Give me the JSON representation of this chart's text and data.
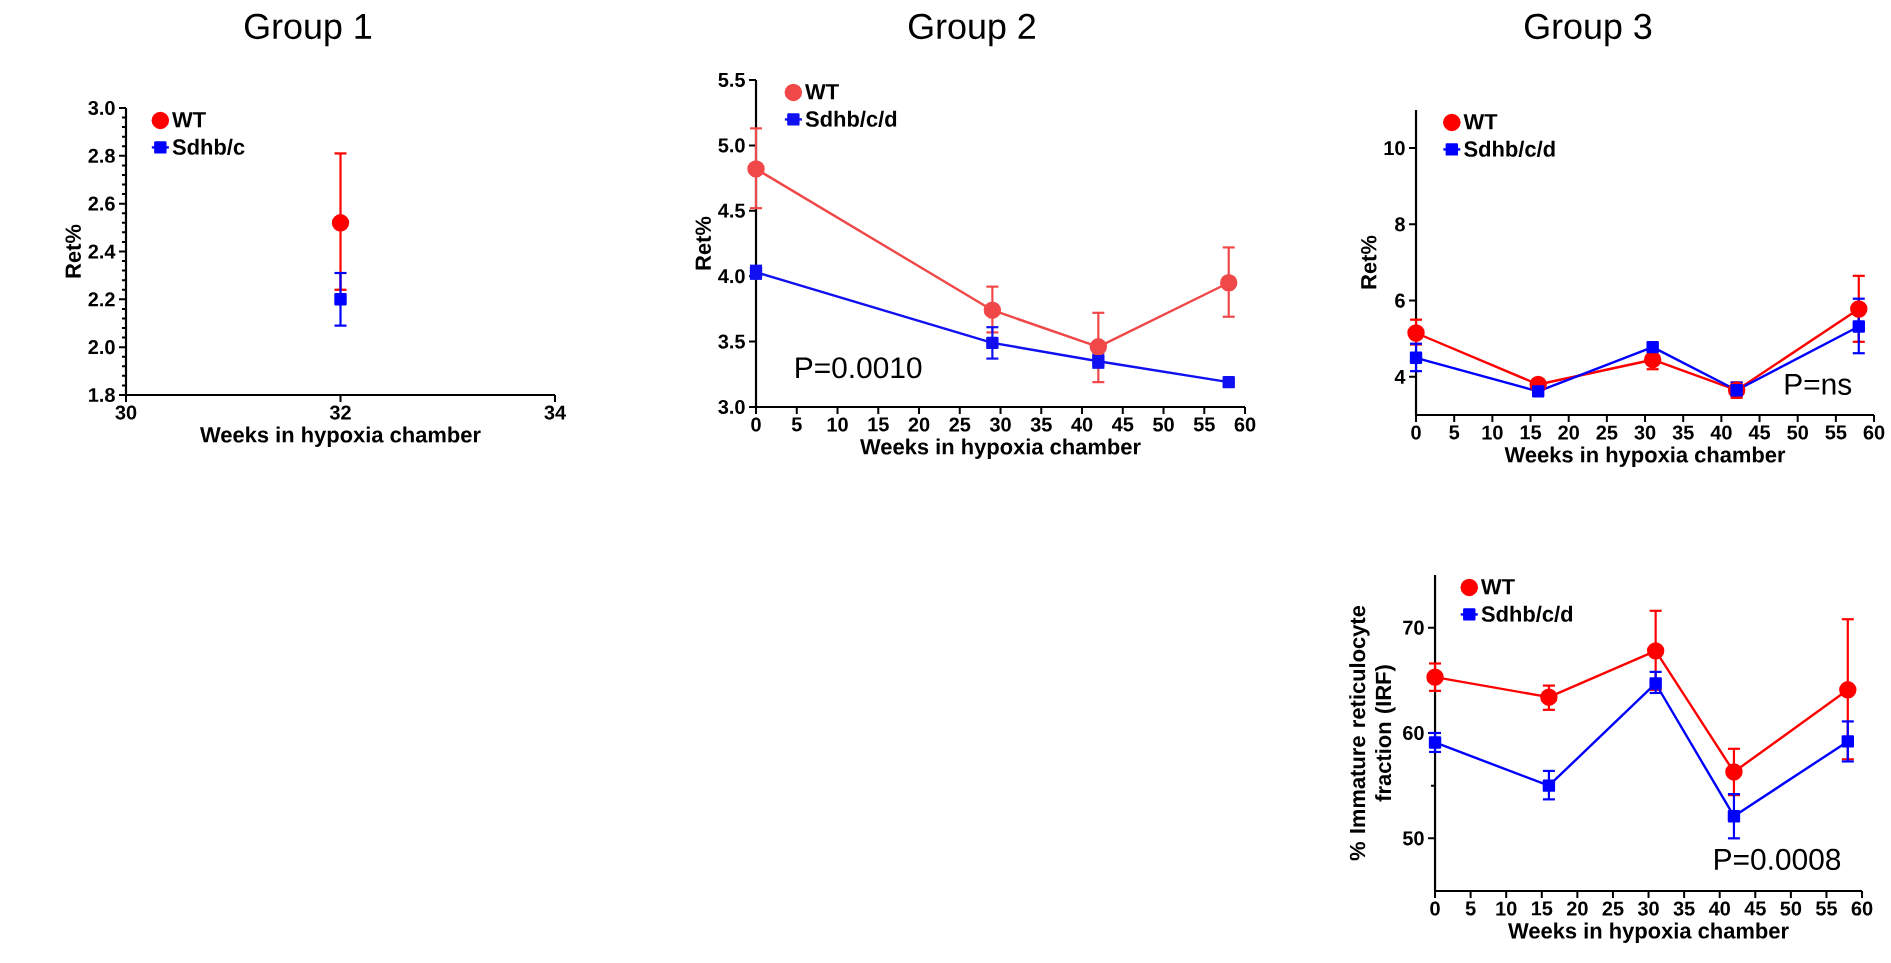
{
  "chart_data": [
    {
      "type": "line",
      "title": "Group 1",
      "xlabel": "Weeks in hypoxia chamber",
      "ylabel": "Ret%",
      "xlim": [
        30,
        34
      ],
      "xticks": [
        30,
        32,
        34
      ],
      "ylim": [
        1.8,
        3.0
      ],
      "yticks": [
        1.8,
        {
          "value": 2,
          "label": "2.0"
        },
        2.2,
        2.4,
        2.6,
        2.8,
        {
          "value": 3,
          "label": "3.0"
        }
      ],
      "legend": "top left",
      "line_style": "solid",
      "series": [
        {
          "name": "WT",
          "color": "#ff0000",
          "marker": "circle",
          "x": [
            32
          ],
          "values": [
            2.52
          ],
          "errors": [
            [
              2.24,
              2.81
            ]
          ]
        },
        {
          "name": "Sdhb/c",
          "color": "#0000ff",
          "marker": "square",
          "x": [
            32
          ],
          "values": [
            2.2
          ],
          "errors": [
            [
              2.09,
              2.31
            ]
          ]
        }
      ]
    },
    {
      "type": "line",
      "title": "Group 2",
      "xlabel": "Weeks in hypoxia chamber",
      "ylabel": "Ret%",
      "xlim": [
        0,
        60
      ],
      "xticks": [
        0,
        5,
        10,
        15,
        20,
        25,
        30,
        35,
        40,
        45,
        50,
        55,
        60
      ],
      "ylim": [
        3.0,
        5.5
      ],
      "yticks": [
        {
          "value": 3,
          "label": "3.0"
        },
        3.5,
        {
          "value": 4,
          "label": "4.0"
        },
        4.5,
        {
          "value": 5,
          "label": "5.0"
        },
        5.5
      ],
      "legend": "top left",
      "line_style": "solid",
      "annotations": [
        "P=0.0010"
      ],
      "series": [
        {
          "name": "WT",
          "color": "#f04848",
          "marker": "circle",
          "x": [
            0,
            29,
            42,
            58
          ],
          "values": [
            4.82,
            3.74,
            3.46,
            3.95
          ],
          "errors": [
            [
              4.52,
              5.13
            ],
            [
              3.57,
              3.92
            ],
            [
              3.19,
              3.72
            ],
            [
              3.69,
              4.22
            ]
          ]
        },
        {
          "name": "Sdhb/c/d",
          "color": "#1010f0",
          "marker": "square",
          "x": [
            0,
            29,
            42,
            58
          ],
          "values": [
            4.03,
            3.49,
            3.35,
            3.19
          ],
          "errors": [
            [
              3.98,
              4.08
            ],
            [
              3.37,
              3.61
            ],
            [
              3.3,
              3.4
            ],
            null
          ]
        }
      ]
    },
    {
      "type": "line",
      "title": "Group 3",
      "xlabel": "Weeks in hypoxia chamber",
      "ylabel": "Ret%",
      "xlim": [
        0,
        60
      ],
      "xticks": [
        0,
        5,
        10,
        15,
        20,
        25,
        30,
        35,
        40,
        45,
        50,
        55,
        60
      ],
      "ylim": [
        3,
        11
      ],
      "yticks": [
        4,
        6,
        8,
        10
      ],
      "legend": "top left",
      "line_style": "solid",
      "annotations": [
        "P=ns"
      ],
      "series": [
        {
          "name": "WT",
          "color": "#ff0000",
          "marker": "circle",
          "x": [
            0,
            16,
            31,
            42,
            58
          ],
          "values": [
            5.15,
            3.8,
            4.45,
            3.65,
            5.78
          ],
          "errors": [
            [
              4.85,
              5.5
            ],
            null,
            [
              4.2,
              4.7
            ],
            [
              3.45,
              3.85
            ],
            [
              4.92,
              6.65
            ]
          ]
        },
        {
          "name": "Sdhb/c/d",
          "color": "#0000ff",
          "marker": "square",
          "x": [
            0,
            16,
            31,
            42,
            58
          ],
          "values": [
            4.5,
            3.62,
            4.78,
            3.65,
            5.32
          ],
          "errors": [
            [
              4.15,
              4.87
            ],
            null,
            null,
            [
              3.5,
              3.85
            ],
            [
              4.62,
              6.05
            ]
          ]
        }
      ]
    },
    {
      "type": "line",
      "xlabel": "Weeks in hypoxia chamber",
      "ylabel": "% Immature reticulocyte fraction (IRF)",
      "xlim": [
        0,
        60
      ],
      "xticks": [
        0,
        5,
        10,
        15,
        20,
        25,
        30,
        35,
        40,
        45,
        50,
        55,
        60
      ],
      "ylim": [
        45,
        75
      ],
      "yticks": [
        50,
        60,
        70
      ],
      "legend": "top left",
      "line_style": "solid",
      "annotations": [
        "P=0.0008"
      ],
      "series": [
        {
          "name": "WT",
          "color": "#ff0000",
          "marker": "circle",
          "x": [
            0,
            16,
            31,
            42,
            58
          ],
          "values": [
            65.3,
            63.4,
            67.8,
            56.3,
            64.1
          ],
          "errors": [
            [
              64.0,
              66.6
            ],
            [
              62.2,
              64.5
            ],
            [
              64.1,
              71.6
            ],
            [
              54.1,
              58.5
            ],
            [
              57.5,
              70.8
            ]
          ]
        },
        {
          "name": "Sdhb/c/d",
          "color": "#0000ff",
          "marker": "square",
          "x": [
            0,
            16,
            31,
            42,
            58
          ],
          "values": [
            59.1,
            55.0,
            64.7,
            52.1,
            59.2
          ],
          "errors": [
            [
              58.2,
              60.0
            ],
            [
              53.7,
              56.4
            ],
            [
              63.8,
              65.8
            ],
            [
              50.0,
              54.2
            ],
            [
              57.3,
              61.1
            ]
          ]
        }
      ]
    }
  ]
}
